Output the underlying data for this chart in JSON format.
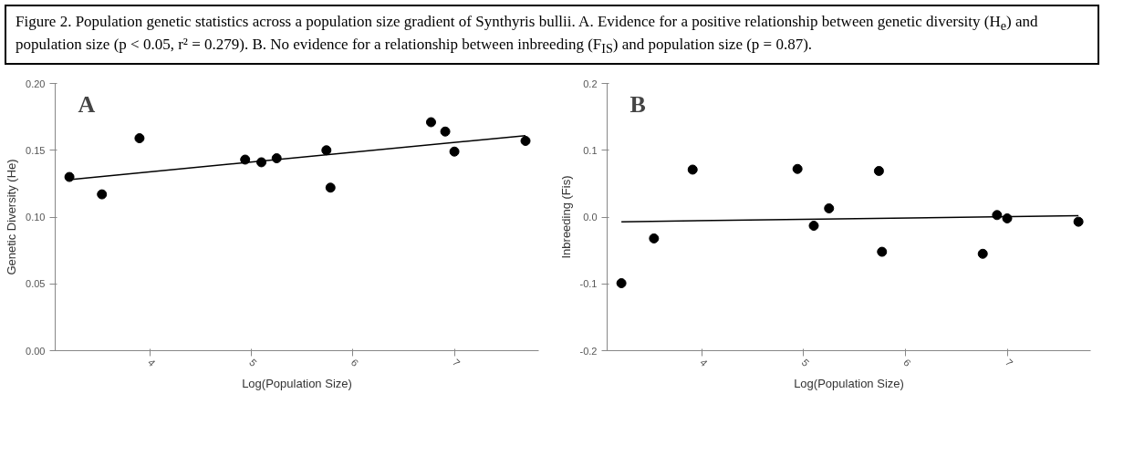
{
  "chart_data": [
    {
      "type": "scatter",
      "title": "Figure 2. Population genetic statistics across a population size gradient of Synthyris bullii. A. Evidence for a positive relationship between genetic diversity (H$_{e}$) and population size (p < 0.05, r² = 0.279). B. No evidence for a relationship between inbreeding (F$_{IS}$) and population size (p = 0.87).",
      "xlabel": "Log(Population Size)",
      "ylabel": "Genetic Diversity (He)",
      "annotations": [
        "A"
      ],
      "series": [
        {
          "color": "#000000",
          "marker": "circle",
          "x": [
            3.21,
            3.53,
            3.9,
            4.94,
            5.1,
            5.25,
            5.74,
            5.78,
            6.77,
            6.91,
            7.0,
            7.7
          ],
          "values": [
            0.13,
            0.117,
            0.159,
            0.143,
            0.141,
            0.144,
            0.15,
            0.122,
            0.171,
            0.164,
            0.149,
            0.157
          ]
        },
        {
          "type": "line",
          "color": "#000000",
          "x": [
            3.21,
            7.7
          ],
          "values": [
            0.128,
            0.161
          ]
        }
      ],
      "xlim": [
        3.07,
        7.83
      ],
      "ylim": [
        0,
        0.2
      ],
      "xticks": [
        4,
        5,
        6,
        7
      ],
      "yticks": [
        {
          "value": 0,
          "label": "0.00"
        },
        {
          "value": 0.05,
          "label": "0.05"
        },
        {
          "value": 0.1,
          "label": "0.10"
        },
        {
          "value": 0.15,
          "label": "0.15"
        },
        {
          "value": 0.2,
          "label": "0.20"
        }
      ],
      "grid": false
    },
    {
      "type": "scatter",
      "xlabel": "Log(Population Size)",
      "ylabel": "Inbreeding (Fis)",
      "annotations": [
        "B"
      ],
      "series": [
        {
          "color": "#000000",
          "marker": "circle",
          "x": [
            3.21,
            3.53,
            3.91,
            4.94,
            5.1,
            5.25,
            5.74,
            5.77,
            6.76,
            6.9,
            7.0,
            7.7
          ],
          "values": [
            -0.099,
            -0.032,
            0.071,
            0.072,
            -0.013,
            0.013,
            0.069,
            -0.052,
            -0.055,
            0.003,
            -0.002,
            -0.007
          ]
        },
        {
          "type": "line",
          "color": "#000000",
          "x": [
            3.21,
            7.7
          ],
          "values": [
            -0.007,
            0.002
          ]
        }
      ],
      "xlim": [
        3.07,
        7.82
      ],
      "ylim": [
        -0.2,
        0.2
      ],
      "xticks": [
        4,
        5,
        6,
        7
      ],
      "yticks": [
        {
          "value": -0.2,
          "label": "-0.2"
        },
        {
          "value": -0.1,
          "label": "-0.1"
        },
        {
          "value": 0,
          "label": "0.0"
        },
        {
          "value": 0.1,
          "label": "0.1"
        },
        {
          "value": 0.2,
          "label": "0.2"
        }
      ],
      "grid": false
    }
  ]
}
